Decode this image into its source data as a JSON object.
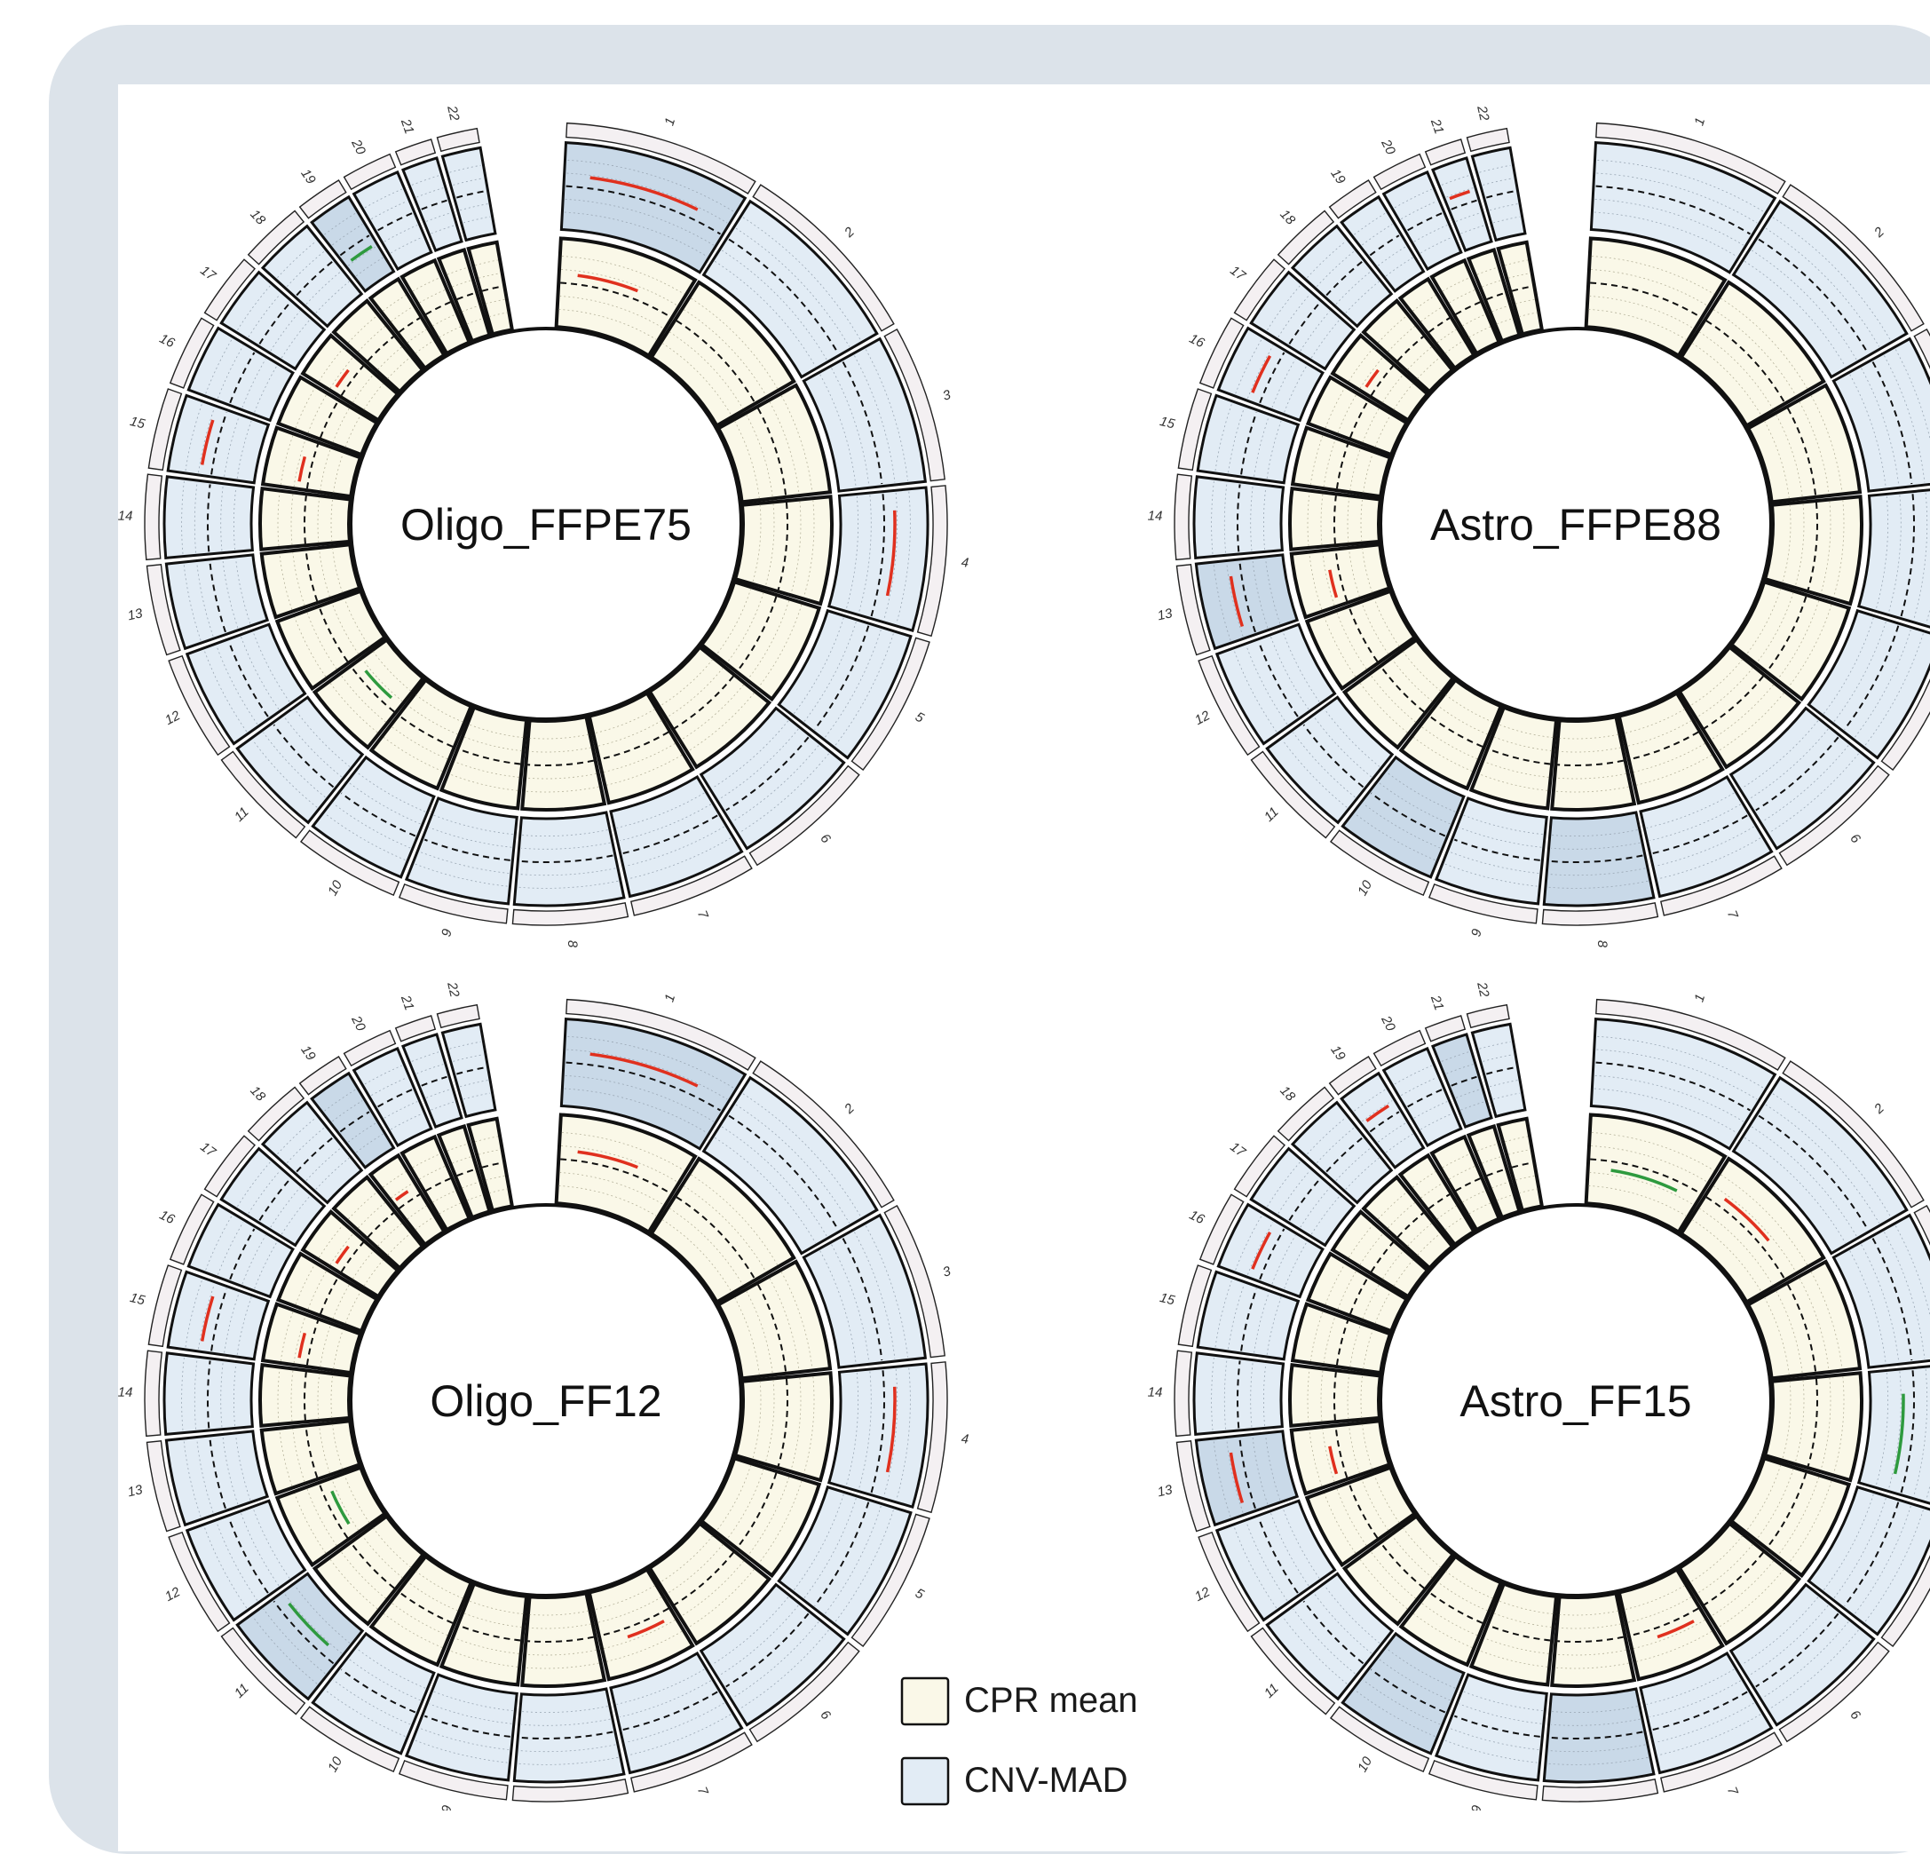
{
  "colors": {
    "frame_bg": "#dce3ea",
    "cpr_fill": "#faf8e8",
    "cnv_fill": "#e2ecf5",
    "cnv_shaded": "#c9d9e8",
    "gain": "#e0301e",
    "loss": "#2e9a3e",
    "outline": "#111111"
  },
  "chromosomes": [
    "1",
    "2",
    "3",
    "4",
    "5",
    "6",
    "7",
    "8",
    "9",
    "10",
    "11",
    "12",
    "13",
    "14",
    "15",
    "16",
    "17",
    "18",
    "19",
    "20",
    "21",
    "22"
  ],
  "circos": [
    {
      "sample": "Oligo_FFPE75",
      "cnv_gains": [
        "1",
        "4",
        "15"
      ],
      "cnv_losses": [
        "19"
      ],
      "cpr_gains": [
        "1",
        "15",
        "17"
      ],
      "cpr_losses": [
        "11"
      ],
      "shaded_cnv": [
        "1",
        "19"
      ]
    },
    {
      "sample": "Astro_FFPE88",
      "cnv_gains": [
        "13",
        "16",
        "21"
      ],
      "cnv_losses": [],
      "cpr_gains": [
        "13",
        "17"
      ],
      "cpr_losses": [],
      "shaded_cnv": [
        "8",
        "10",
        "13"
      ]
    },
    {
      "sample": "Oligo_FF12",
      "cnv_gains": [
        "1",
        "4",
        "15"
      ],
      "cnv_losses": [
        "11"
      ],
      "cpr_gains": [
        "1",
        "7",
        "15",
        "17",
        "19"
      ],
      "cpr_losses": [
        "12"
      ],
      "shaded_cnv": [
        "1",
        "11",
        "19"
      ]
    },
    {
      "sample": "Astro_FF15",
      "cnv_gains": [
        "13",
        "16",
        "19"
      ],
      "cnv_losses": [
        "4"
      ],
      "cpr_gains": [
        "2",
        "13",
        "7"
      ],
      "cpr_losses": [
        "1"
      ],
      "shaded_cnv": [
        "8",
        "10",
        "13",
        "21"
      ]
    }
  ],
  "legend": [
    {
      "key": "cpr",
      "label": "CPR mean"
    },
    {
      "key": "cnv",
      "label": "CNV-MAD"
    }
  ]
}
